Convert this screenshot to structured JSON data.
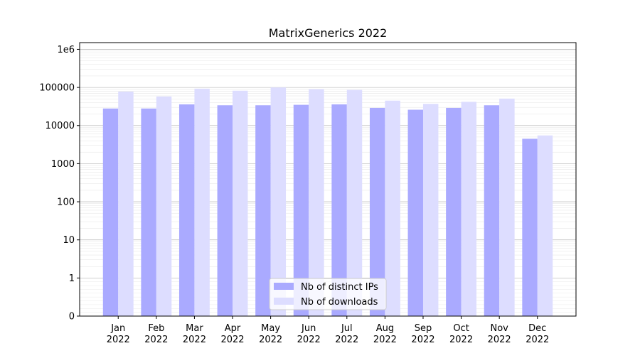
{
  "chart_data": {
    "type": "bar",
    "title": "MatrixGenerics 2022",
    "xlabel": "",
    "ylabel": "",
    "y_scale": "symlog",
    "ylim": [
      0,
      1500000
    ],
    "y_ticks": [
      0,
      1,
      10,
      100,
      1000,
      10000,
      100000,
      1000000
    ],
    "y_tick_labels": [
      "0",
      "1",
      "10",
      "100",
      "1000",
      "10000",
      "100000",
      "1e6"
    ],
    "grid": true,
    "legend_position": "bottom-center",
    "categories": [
      [
        "Jan",
        "2022"
      ],
      [
        "Feb",
        "2022"
      ],
      [
        "Mar",
        "2022"
      ],
      [
        "Apr",
        "2022"
      ],
      [
        "May",
        "2022"
      ],
      [
        "Jun",
        "2022"
      ],
      [
        "Jul",
        "2022"
      ],
      [
        "Aug",
        "2022"
      ],
      [
        "Sep",
        "2022"
      ],
      [
        "Oct",
        "2022"
      ],
      [
        "Nov",
        "2022"
      ],
      [
        "Dec",
        "2022"
      ]
    ],
    "series": [
      {
        "name": "Nb of distinct IPs",
        "color": "#aaaaff",
        "values": [
          28000,
          28000,
          36000,
          34000,
          34000,
          35000,
          36000,
          29000,
          26000,
          29000,
          34000,
          4500
        ]
      },
      {
        "name": "Nb of downloads",
        "color": "#ddddff",
        "values": [
          78000,
          58000,
          93000,
          82000,
          100000,
          90000,
          86000,
          45000,
          37000,
          42000,
          51000,
          5500
        ]
      }
    ]
  }
}
